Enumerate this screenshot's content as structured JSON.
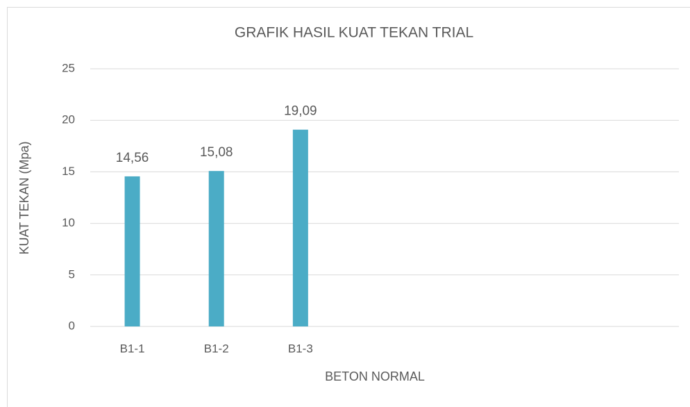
{
  "chart_data": {
    "type": "bar",
    "title": "GRAFIK HASIL KUAT TEKAN TRIAL",
    "x_label": "BETON NORMAL",
    "y_label": "KUAT TEKAN (Mpa)",
    "categories": [
      "B1-1",
      "B1-2",
      "B1-3",
      null,
      null,
      null,
      null
    ],
    "values": [
      14.56,
      15.08,
      19.09,
      null,
      null,
      null,
      null
    ],
    "value_labels": [
      "14,56",
      "15,08",
      "19,09",
      null,
      null,
      null,
      null
    ],
    "color": "#4bacc6",
    "ylim": [
      0,
      25
    ],
    "yticks": [
      0,
      5,
      10,
      15,
      20,
      25
    ],
    "grid": true
  }
}
